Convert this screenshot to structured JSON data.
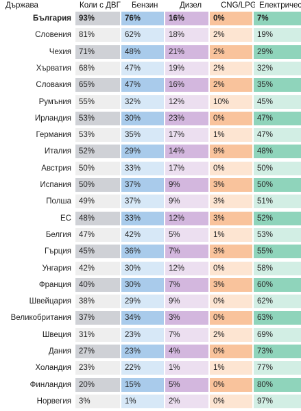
{
  "chart_data": {
    "type": "table",
    "columns": [
      "Държава",
      "Коли с ДВГ",
      "Бензин",
      "Дизел",
      "CNG/LPG",
      "Електрически"
    ],
    "rows": [
      {
        "country": "България",
        "values": [
          "93%",
          "76%",
          "16%",
          "0%",
          "7%"
        ],
        "bold": true
      },
      {
        "country": "Словения",
        "values": [
          "81%",
          "62%",
          "18%",
          "2%",
          "19%"
        ]
      },
      {
        "country": "Чехия",
        "values": [
          "71%",
          "48%",
          "21%",
          "2%",
          "29%"
        ]
      },
      {
        "country": "Хърватия",
        "values": [
          "68%",
          "47%",
          "19%",
          "2%",
          "32%"
        ]
      },
      {
        "country": "Словакия",
        "values": [
          "65%",
          "47%",
          "16%",
          "2%",
          "35%"
        ]
      },
      {
        "country": "Румъния",
        "values": [
          "55%",
          "32%",
          "12%",
          "10%",
          "45%"
        ]
      },
      {
        "country": "Ирландия",
        "values": [
          "53%",
          "30%",
          "23%",
          "0%",
          "47%"
        ]
      },
      {
        "country": "Германия",
        "values": [
          "53%",
          "35%",
          "17%",
          "1%",
          "47%"
        ]
      },
      {
        "country": "Италия",
        "values": [
          "52%",
          "29%",
          "14%",
          "9%",
          "48%"
        ]
      },
      {
        "country": "Австрия",
        "values": [
          "50%",
          "33%",
          "17%",
          "0%",
          "50%"
        ]
      },
      {
        "country": "Испания",
        "values": [
          "50%",
          "37%",
          "9%",
          "3%",
          "50%"
        ]
      },
      {
        "country": "Полша",
        "values": [
          "49%",
          "37%",
          "9%",
          "3%",
          "51%"
        ]
      },
      {
        "country": "ЕС",
        "values": [
          "48%",
          "33%",
          "12%",
          "3%",
          "52%"
        ]
      },
      {
        "country": "Белгия",
        "values": [
          "47%",
          "42%",
          "5%",
          "1%",
          "53%"
        ]
      },
      {
        "country": "Гърция",
        "values": [
          "45%",
          "36%",
          "7%",
          "3%",
          "55%"
        ]
      },
      {
        "country": "Унгария",
        "values": [
          "42%",
          "30%",
          "12%",
          "0%",
          "58%"
        ]
      },
      {
        "country": "Франция",
        "values": [
          "40%",
          "30%",
          "7%",
          "3%",
          "60%"
        ]
      },
      {
        "country": "Швейцария",
        "values": [
          "38%",
          "29%",
          "9%",
          "0%",
          "62%"
        ]
      },
      {
        "country": "Великобритания",
        "values": [
          "37%",
          "34%",
          "3%",
          "0%",
          "63%"
        ]
      },
      {
        "country": "Швеция",
        "values": [
          "31%",
          "23%",
          "7%",
          "2%",
          "69%"
        ]
      },
      {
        "country": "Дания",
        "values": [
          "27%",
          "23%",
          "4%",
          "0%",
          "73%"
        ]
      },
      {
        "country": "Холандия",
        "values": [
          "23%",
          "22%",
          "1%",
          "1%",
          "77%"
        ]
      },
      {
        "country": "Финландия",
        "values": [
          "20%",
          "15%",
          "5%",
          "0%",
          "80%"
        ]
      },
      {
        "country": "Норвегия",
        "values": [
          "3%",
          "1%",
          "2%",
          "0%",
          "97%"
        ]
      }
    ],
    "column_palettes": [
      {
        "light": "#eeeeee",
        "dark": "#cfd1d6"
      },
      {
        "light": "#d7e8f7",
        "dark": "#a9cbeb"
      },
      {
        "light": "#ecdff0",
        "dark": "#d3b7de"
      },
      {
        "light": "#fde5d2",
        "dark": "#f9c39c"
      },
      {
        "light": "#d2eee4",
        "dark": "#8fd4bb"
      }
    ]
  }
}
